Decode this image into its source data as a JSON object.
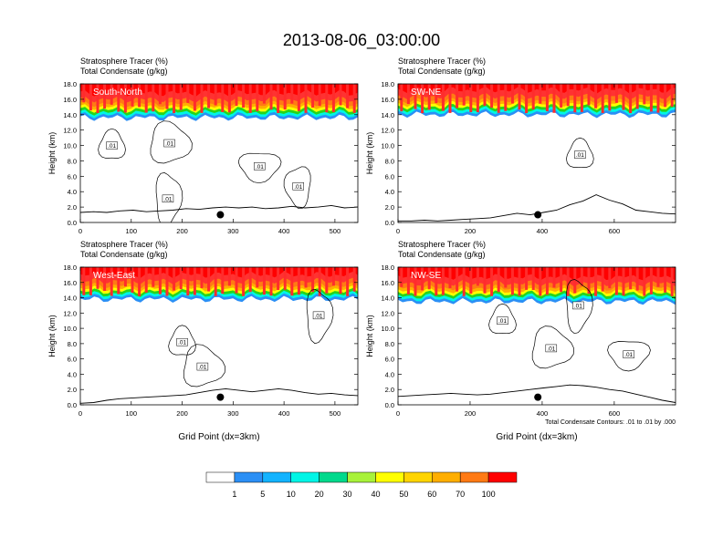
{
  "title": "2013-08-06_03:00:00",
  "colorbar": {
    "levels": [
      "1",
      "5",
      "10",
      "20",
      "30",
      "40",
      "50",
      "60",
      "70",
      "100"
    ],
    "colors": [
      "#ffffff",
      "#2b8ff5",
      "#13b3ff",
      "#00f5e6",
      "#00d98c",
      "#27d41c",
      "#a8f23a",
      "#ffff00",
      "#ffd400",
      "#ffae00",
      "#ff7a14",
      "#ff3232",
      "#ff0000"
    ]
  },
  "chart_data": [
    {
      "type": "contour",
      "panel": "South-North",
      "title_left_1": "Stratosphere Tracer   (%)",
      "title_left_2": "Total Condensate   (g/kg)",
      "xlim": [
        0,
        545
      ],
      "ylim": [
        0,
        18
      ],
      "xticks": [
        "0",
        "100",
        "200",
        "300",
        "400",
        "500"
      ],
      "yticks": [
        "0.0",
        "2.0",
        "4.0",
        "6.0",
        "8.0",
        "10.0",
        "12.0",
        "14.0",
        "16.0",
        "18.0"
      ],
      "ylabel": "Height (km)",
      "xlabel": "",
      "tracer_base_km": 13.6,
      "contour_labels": [
        {
          "text": ".01",
          "x": 62,
          "y": 10.0
        },
        {
          "text": ".01",
          "x": 175,
          "y": 10.3
        },
        {
          "text": ".01",
          "x": 172,
          "y": 3.1
        },
        {
          "text": ".01",
          "x": 352,
          "y": 7.3
        },
        {
          "text": ".01",
          "x": 428,
          "y": 4.7
        }
      ],
      "marker": {
        "x": 275,
        "y": 1.0
      },
      "terrain_km": [
        1.3,
        1.4,
        1.3,
        1.5,
        1.6,
        1.4,
        1.5,
        1.6,
        1.8,
        1.7,
        1.9,
        2.0,
        1.9,
        2.0,
        1.8,
        1.9,
        2.1,
        1.9,
        2.0,
        2.2,
        1.9,
        2.0
      ]
    },
    {
      "type": "contour",
      "panel": "SW-NE",
      "title_left_1": "Stratosphere Tracer   (%)",
      "title_left_2": "Total Condensate   (g/kg)",
      "xlim": [
        0,
        770
      ],
      "ylim": [
        0,
        18
      ],
      "xticks": [
        "0",
        "200",
        "400",
        "600"
      ],
      "yticks": [
        "0.0",
        "2.0",
        "4.0",
        "6.0",
        "8.0",
        "10.0",
        "12.0",
        "14.0",
        "16.0",
        "18.0"
      ],
      "ylabel": "Height (km)",
      "xlabel": "",
      "tracer_base_km": 14.0,
      "contour_labels": [
        {
          "text": ".01",
          "x": 505,
          "y": 8.8
        }
      ],
      "marker": {
        "x": 388,
        "y": 1.0
      },
      "terrain_km": [
        0.2,
        0.2,
        0.3,
        0.2,
        0.3,
        0.4,
        0.5,
        0.6,
        0.9,
        1.2,
        1.0,
        1.3,
        1.6,
        2.3,
        2.8,
        3.6,
        2.9,
        2.4,
        1.6,
        1.4,
        1.2,
        1.1
      ]
    },
    {
      "type": "contour",
      "panel": "West-East",
      "title_left_1": "Stratosphere Tracer   (%)",
      "title_left_2": "Total Condensate   (g/kg)",
      "xlim": [
        0,
        545
      ],
      "ylim": [
        0,
        18
      ],
      "xticks": [
        "0",
        "100",
        "200",
        "300",
        "400",
        "500"
      ],
      "yticks": [
        "0.0",
        "2.0",
        "4.0",
        "6.0",
        "8.0",
        "10.0",
        "12.0",
        "14.0",
        "16.0",
        "18.0"
      ],
      "ylabel": "Height (km)",
      "xlabel": "Grid Point (dx=3km)",
      "tracer_base_km": 13.8,
      "contour_labels": [
        {
          "text": ".01",
          "x": 200,
          "y": 8.2
        },
        {
          "text": ".01",
          "x": 240,
          "y": 5.0
        },
        {
          "text": ".01",
          "x": 468,
          "y": 11.7
        }
      ],
      "marker": {
        "x": 275,
        "y": 1.0
      },
      "terrain_km": [
        0.2,
        0.3,
        0.6,
        0.8,
        0.9,
        1.0,
        1.1,
        1.2,
        1.3,
        1.6,
        1.9,
        2.1,
        1.9,
        1.7,
        1.9,
        2.1,
        1.9,
        1.6,
        1.4,
        1.5,
        1.3,
        1.2
      ]
    },
    {
      "type": "contour",
      "panel": "NW-SE",
      "title_left_1": "Stratosphere Tracer   (%)",
      "title_left_2": "Total Condensate   (g/kg)",
      "xlim": [
        0,
        770
      ],
      "ylim": [
        0,
        18
      ],
      "xticks": [
        "0",
        "200",
        "400",
        "600"
      ],
      "yticks": [
        "0.0",
        "2.0",
        "4.0",
        "6.0",
        "8.0",
        "10.0",
        "12.0",
        "14.0",
        "16.0",
        "18.0"
      ],
      "ylabel": "Height (km)",
      "xlabel": "Grid Point (dx=3km)",
      "tracer_base_km": 13.5,
      "footnote": "Total Condensate Contours: .01 to .01 by .000",
      "contour_labels": [
        {
          "text": ".01",
          "x": 290,
          "y": 11.0
        },
        {
          "text": ".01",
          "x": 425,
          "y": 7.4
        },
        {
          "text": ".01",
          "x": 500,
          "y": 13.0
        },
        {
          "text": ".01",
          "x": 640,
          "y": 6.6
        }
      ],
      "marker": {
        "x": 388,
        "y": 1.0
      },
      "terrain_km": [
        1.1,
        1.2,
        1.3,
        1.4,
        1.5,
        1.4,
        1.3,
        1.4,
        1.6,
        1.8,
        2.0,
        2.2,
        2.4,
        2.6,
        2.5,
        2.3,
        2.0,
        1.8,
        1.4,
        1.0,
        0.6,
        0.3
      ]
    }
  ]
}
